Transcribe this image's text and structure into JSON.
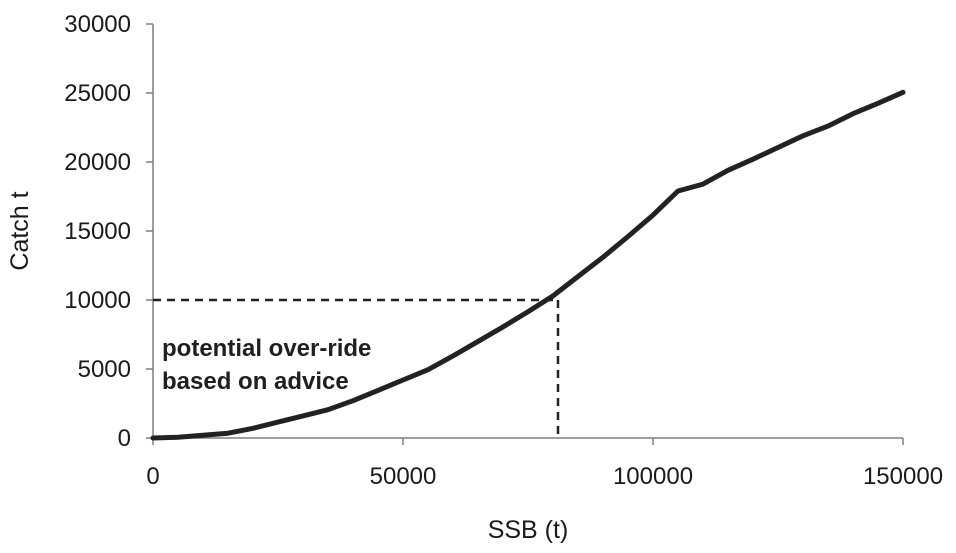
{
  "chart_data": {
    "type": "line",
    "title": "",
    "xlabel": "SSB (t)",
    "ylabel": "Catch t",
    "xlim": [
      0,
      150000
    ],
    "ylim": [
      0,
      30000
    ],
    "x_ticks": [
      0,
      50000,
      100000,
      150000
    ],
    "y_ticks": [
      0,
      5000,
      10000,
      15000,
      20000,
      25000,
      30000
    ],
    "grid": false,
    "legend": "none",
    "series": [
      {
        "color": "#222222",
        "points": [
          [
            0,
            0
          ],
          [
            5000,
            50
          ],
          [
            10000,
            200
          ],
          [
            15000,
            350
          ],
          [
            20000,
            700
          ],
          [
            25000,
            1150
          ],
          [
            30000,
            1600
          ],
          [
            35000,
            2050
          ],
          [
            40000,
            2700
          ],
          [
            45000,
            3450
          ],
          [
            50000,
            4200
          ],
          [
            55000,
            4950
          ],
          [
            60000,
            5950
          ],
          [
            65000,
            7000
          ],
          [
            70000,
            8050
          ],
          [
            75000,
            9150
          ],
          [
            80000,
            10300
          ],
          [
            85000,
            11700
          ],
          [
            90000,
            13100
          ],
          [
            95000,
            14600
          ],
          [
            100000,
            16150
          ],
          [
            105000,
            17900
          ],
          [
            110000,
            18400
          ],
          [
            115000,
            19400
          ],
          [
            120000,
            20200
          ],
          [
            125000,
            21050
          ],
          [
            130000,
            21900
          ],
          [
            135000,
            22600
          ],
          [
            140000,
            23500
          ],
          [
            145000,
            24250
          ],
          [
            150000,
            25050
          ]
        ]
      }
    ],
    "reference_lines": {
      "x": 81000,
      "y": 10000,
      "style": "dashed",
      "color": "#222222"
    },
    "annotation": {
      "lines": [
        "potential over-ride",
        "based on advice"
      ]
    }
  }
}
